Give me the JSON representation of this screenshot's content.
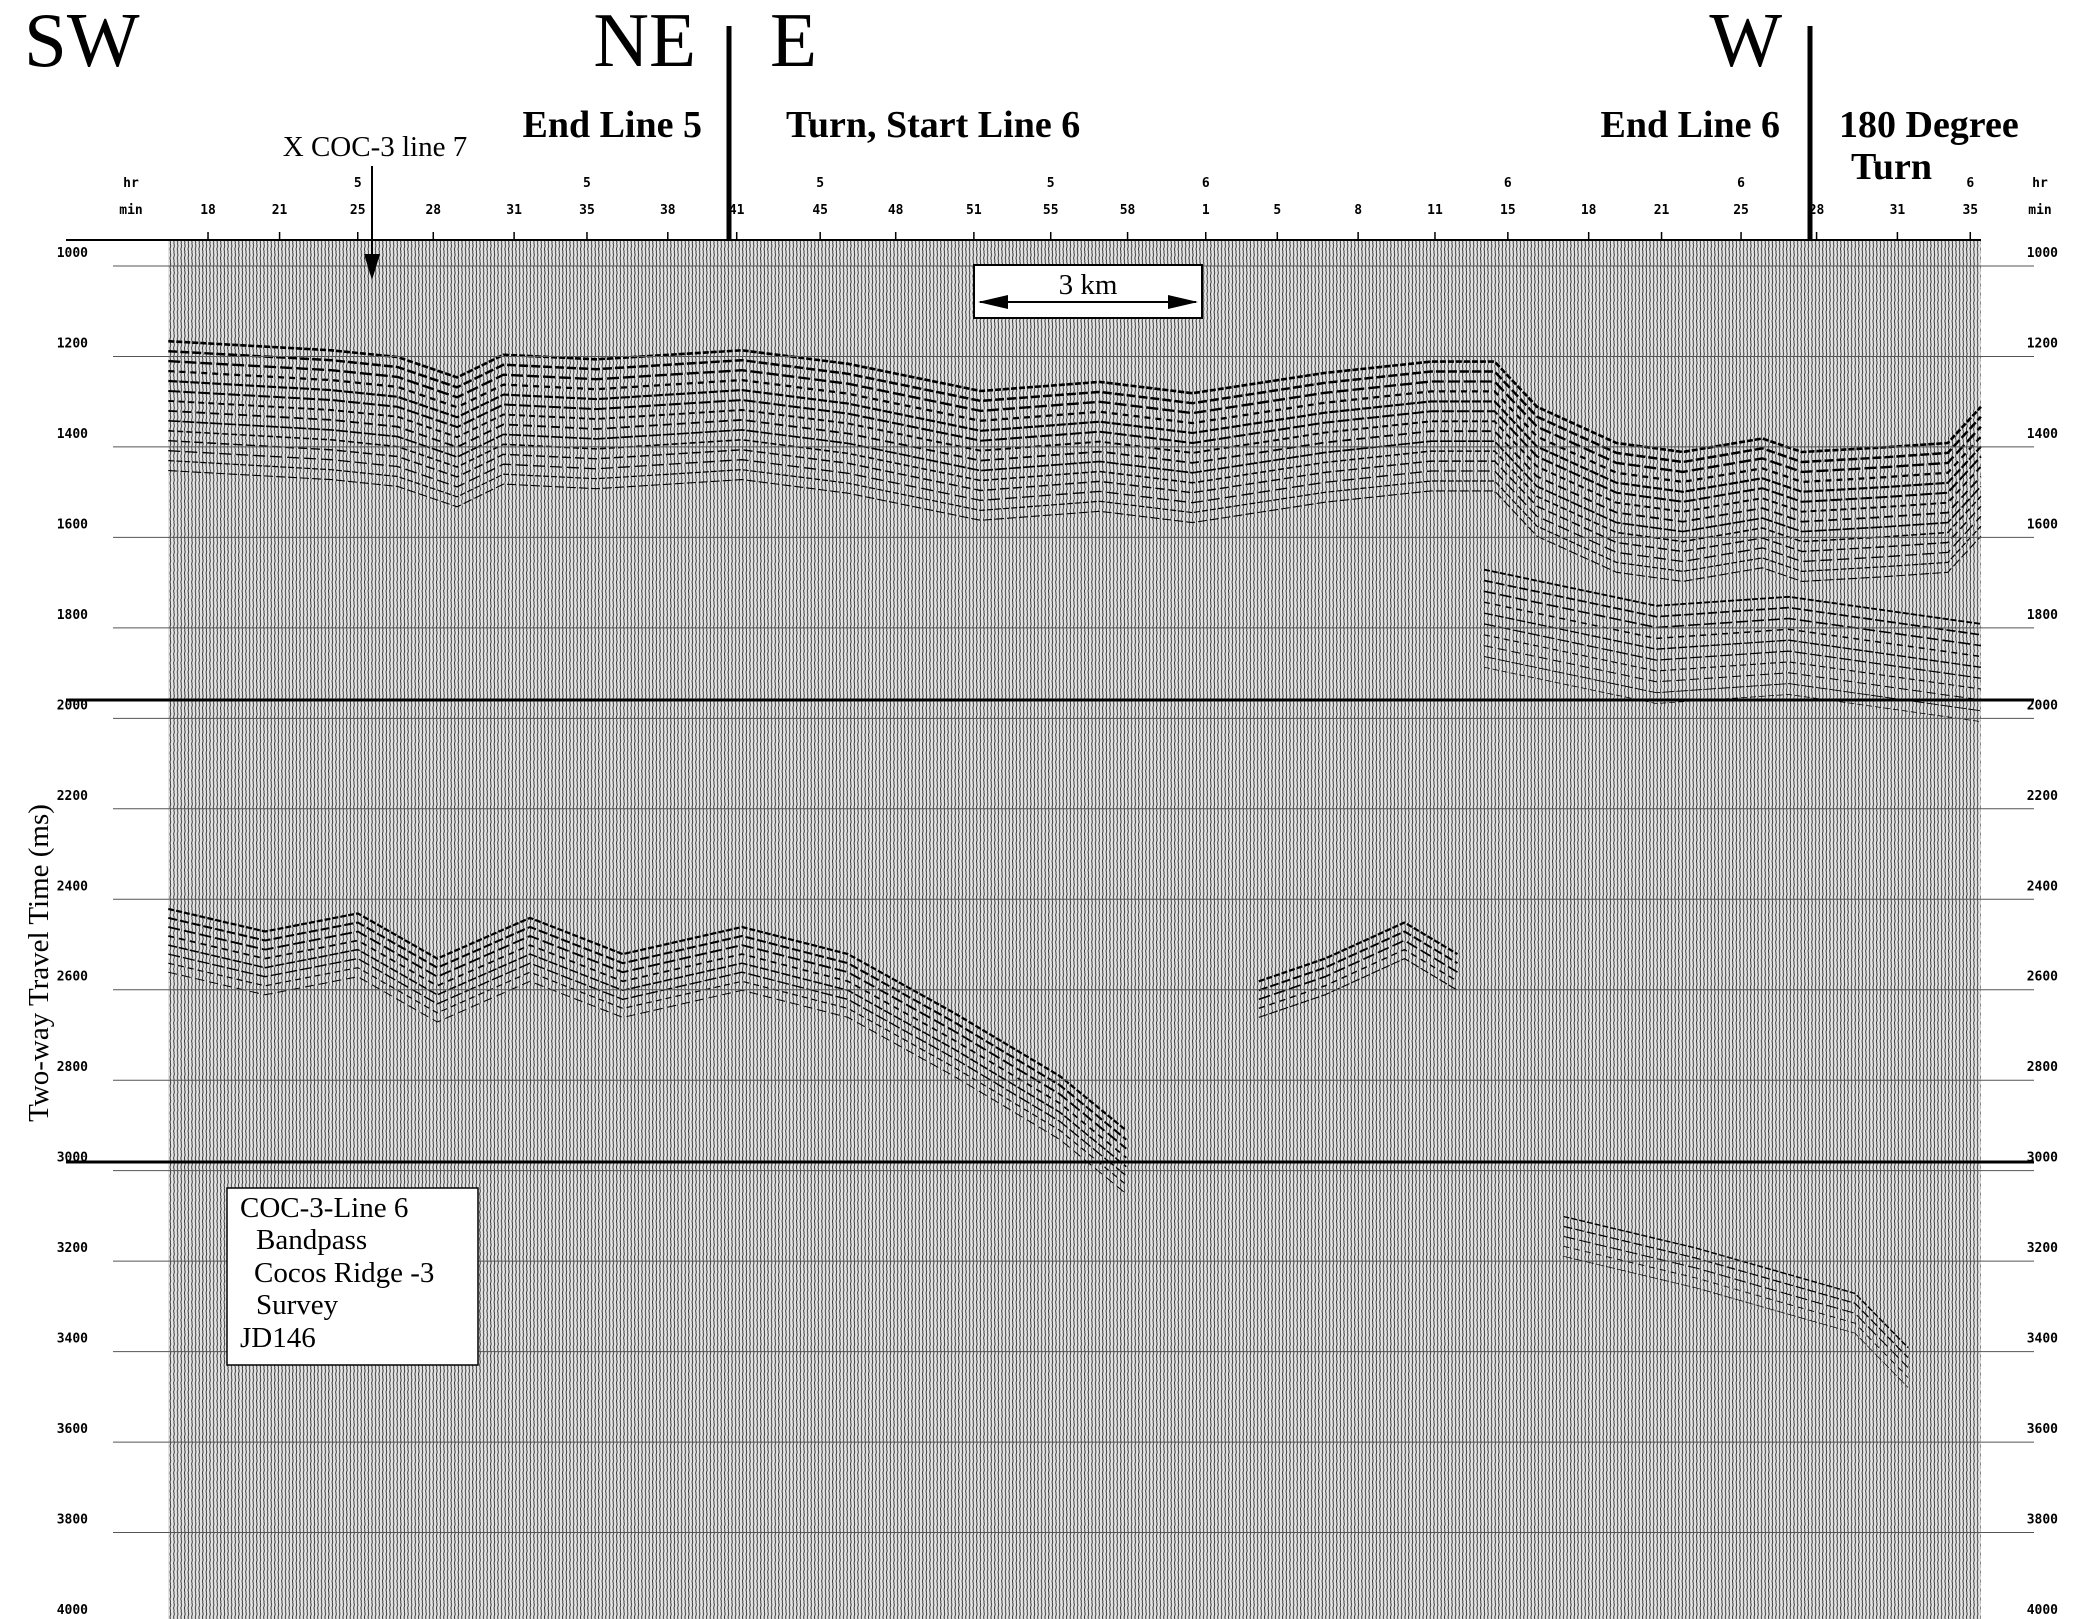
{
  "directions": {
    "sw": "SW",
    "ne": "NE",
    "e": "E",
    "w": "W"
  },
  "annotations": {
    "end_line_5": "End Line 5",
    "turn_start_line_6": "Turn, Start Line 6",
    "end_line_6": "End Line 6",
    "degree_turn": [
      "180 Degree",
      "Turn"
    ],
    "crossing": "X COC-3 line 7",
    "scale_bar": "3 km"
  },
  "time_axis": {
    "hr_label": "hr",
    "min_label": "min",
    "minutes": [
      18,
      21,
      25,
      28,
      31,
      35,
      38,
      41,
      45,
      48,
      51,
      55,
      58,
      1,
      5,
      8,
      11,
      15,
      18,
      21,
      25,
      28,
      31,
      35
    ],
    "hours": [
      null,
      null,
      5,
      null,
      null,
      5,
      null,
      null,
      5,
      null,
      null,
      5,
      null,
      6,
      null,
      null,
      null,
      6,
      null,
      null,
      6,
      null,
      null,
      6
    ]
  },
  "depth_axis": {
    "title": "Two-way Travel Time (ms)",
    "ticks": [
      1000,
      1200,
      1400,
      1600,
      1800,
      2000,
      2200,
      2400,
      2600,
      2800,
      3000,
      3200,
      3400,
      3600,
      3800,
      4000
    ]
  },
  "info_box": {
    "lines": [
      "COC-3-Line 6",
      "Bandpass",
      "Cocos Ridge -3",
      "Survey",
      "JD146"
    ]
  }
}
